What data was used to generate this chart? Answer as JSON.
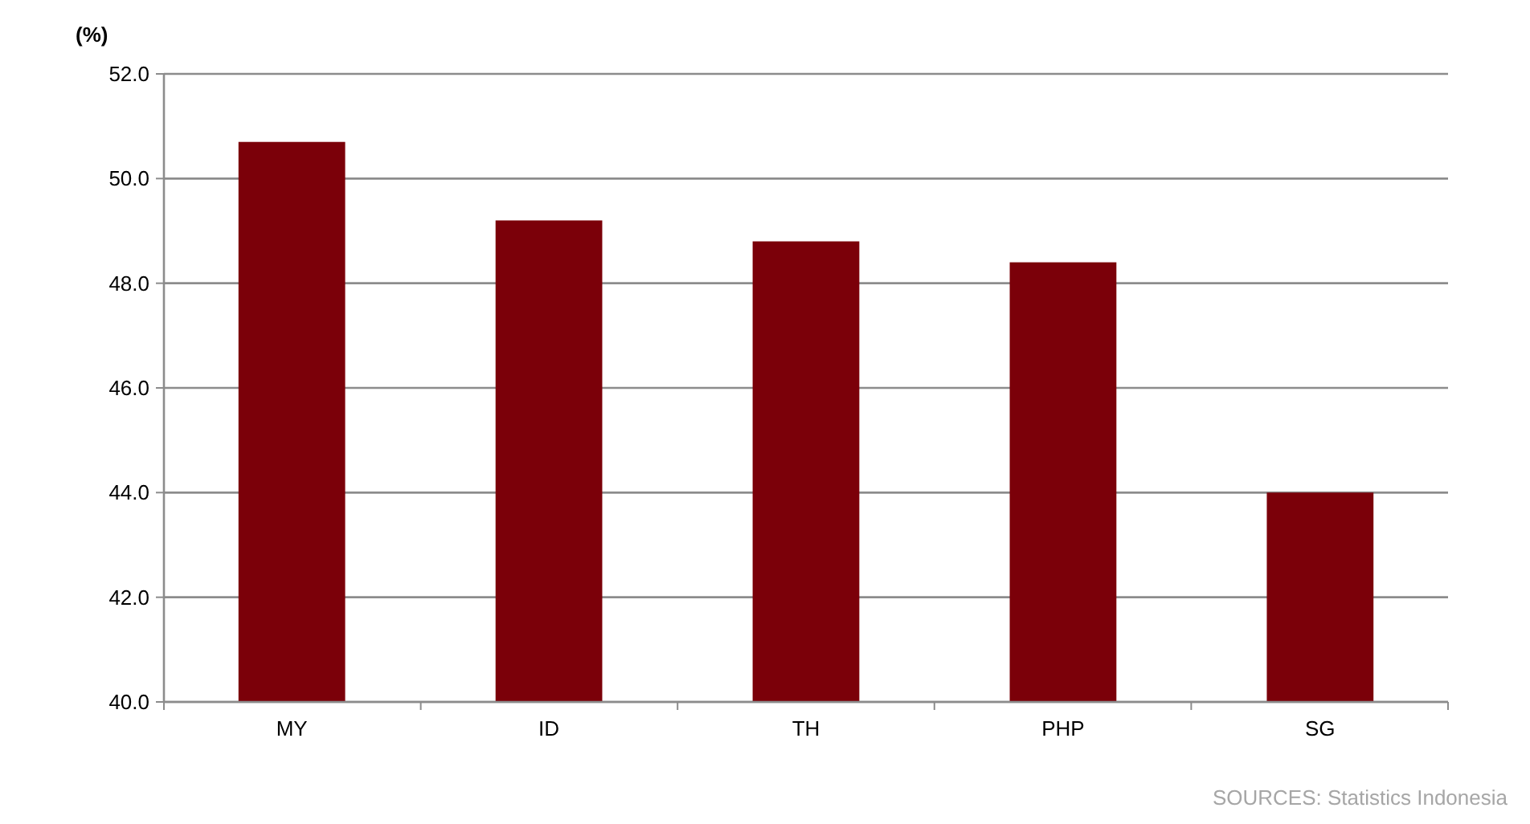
{
  "chart_data": {
    "type": "bar",
    "ylabel": "(%)",
    "categories": [
      "MY",
      "ID",
      "TH",
      "PHP",
      "SG"
    ],
    "values": [
      50.7,
      49.2,
      48.8,
      48.4,
      44.0
    ],
    "color": "#7b0009",
    "ylim": [
      40,
      52
    ],
    "yticks": [
      {
        "value": 40,
        "label": "40.0"
      },
      {
        "value": 42,
        "label": "42.0"
      },
      {
        "value": 44,
        "label": "44.0"
      },
      {
        "value": 46,
        "label": "46.0"
      },
      {
        "value": 48,
        "label": "48.0"
      },
      {
        "value": 50,
        "label": "50.0"
      },
      {
        "value": 52,
        "label": "52.0"
      }
    ],
    "grid": "y",
    "annotations": [
      "SOURCES: Statistics Indonesia"
    ]
  }
}
